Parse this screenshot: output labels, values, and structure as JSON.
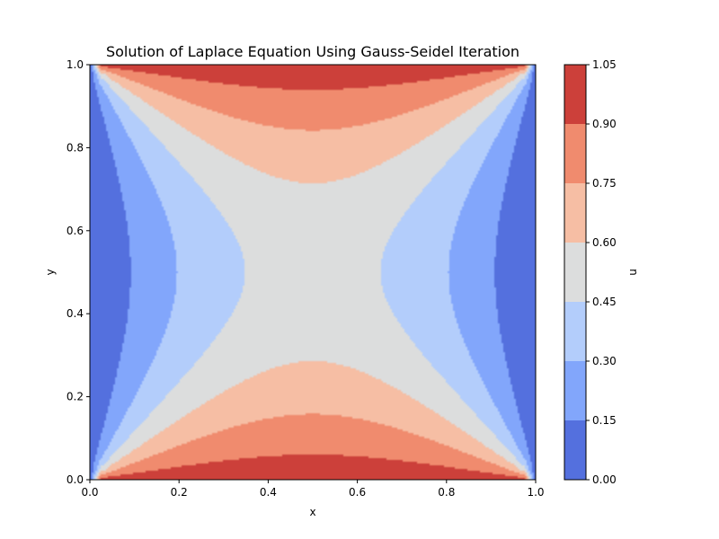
{
  "chart_data": {
    "type": "heatmap",
    "subtype": "filled-contour",
    "title": "Solution of Laplace Equation Using Gauss-Seidel Iteration",
    "xlabel": "x",
    "ylabel": "y",
    "xlim": [
      0.0,
      1.0
    ],
    "ylim": [
      0.0,
      1.0
    ],
    "x_ticks": [
      "0.0",
      "0.2",
      "0.4",
      "0.6",
      "0.8",
      "1.0"
    ],
    "y_ticks": [
      "0.0",
      "0.2",
      "0.4",
      "0.6",
      "0.8",
      "1.0"
    ],
    "colorbar": {
      "label": "u",
      "levels": [
        0.0,
        0.15,
        0.3,
        0.45,
        0.6,
        0.75,
        0.9,
        1.05
      ],
      "tick_labels": [
        "0.00",
        "0.15",
        "0.30",
        "0.45",
        "0.60",
        "0.75",
        "0.90",
        "1.05"
      ],
      "colors": [
        "#5470de",
        "#82a6fb",
        "#b3cdfb",
        "#dcdddd",
        "#f6bea4",
        "#f08b6e",
        "#cc403a"
      ],
      "colormap": "coolwarm"
    },
    "boundary_conditions": {
      "left_x0": 0.0,
      "right_x1": 0.0,
      "bottom_y0": 1.0,
      "top_y1": 1.0
    },
    "grid": false
  }
}
